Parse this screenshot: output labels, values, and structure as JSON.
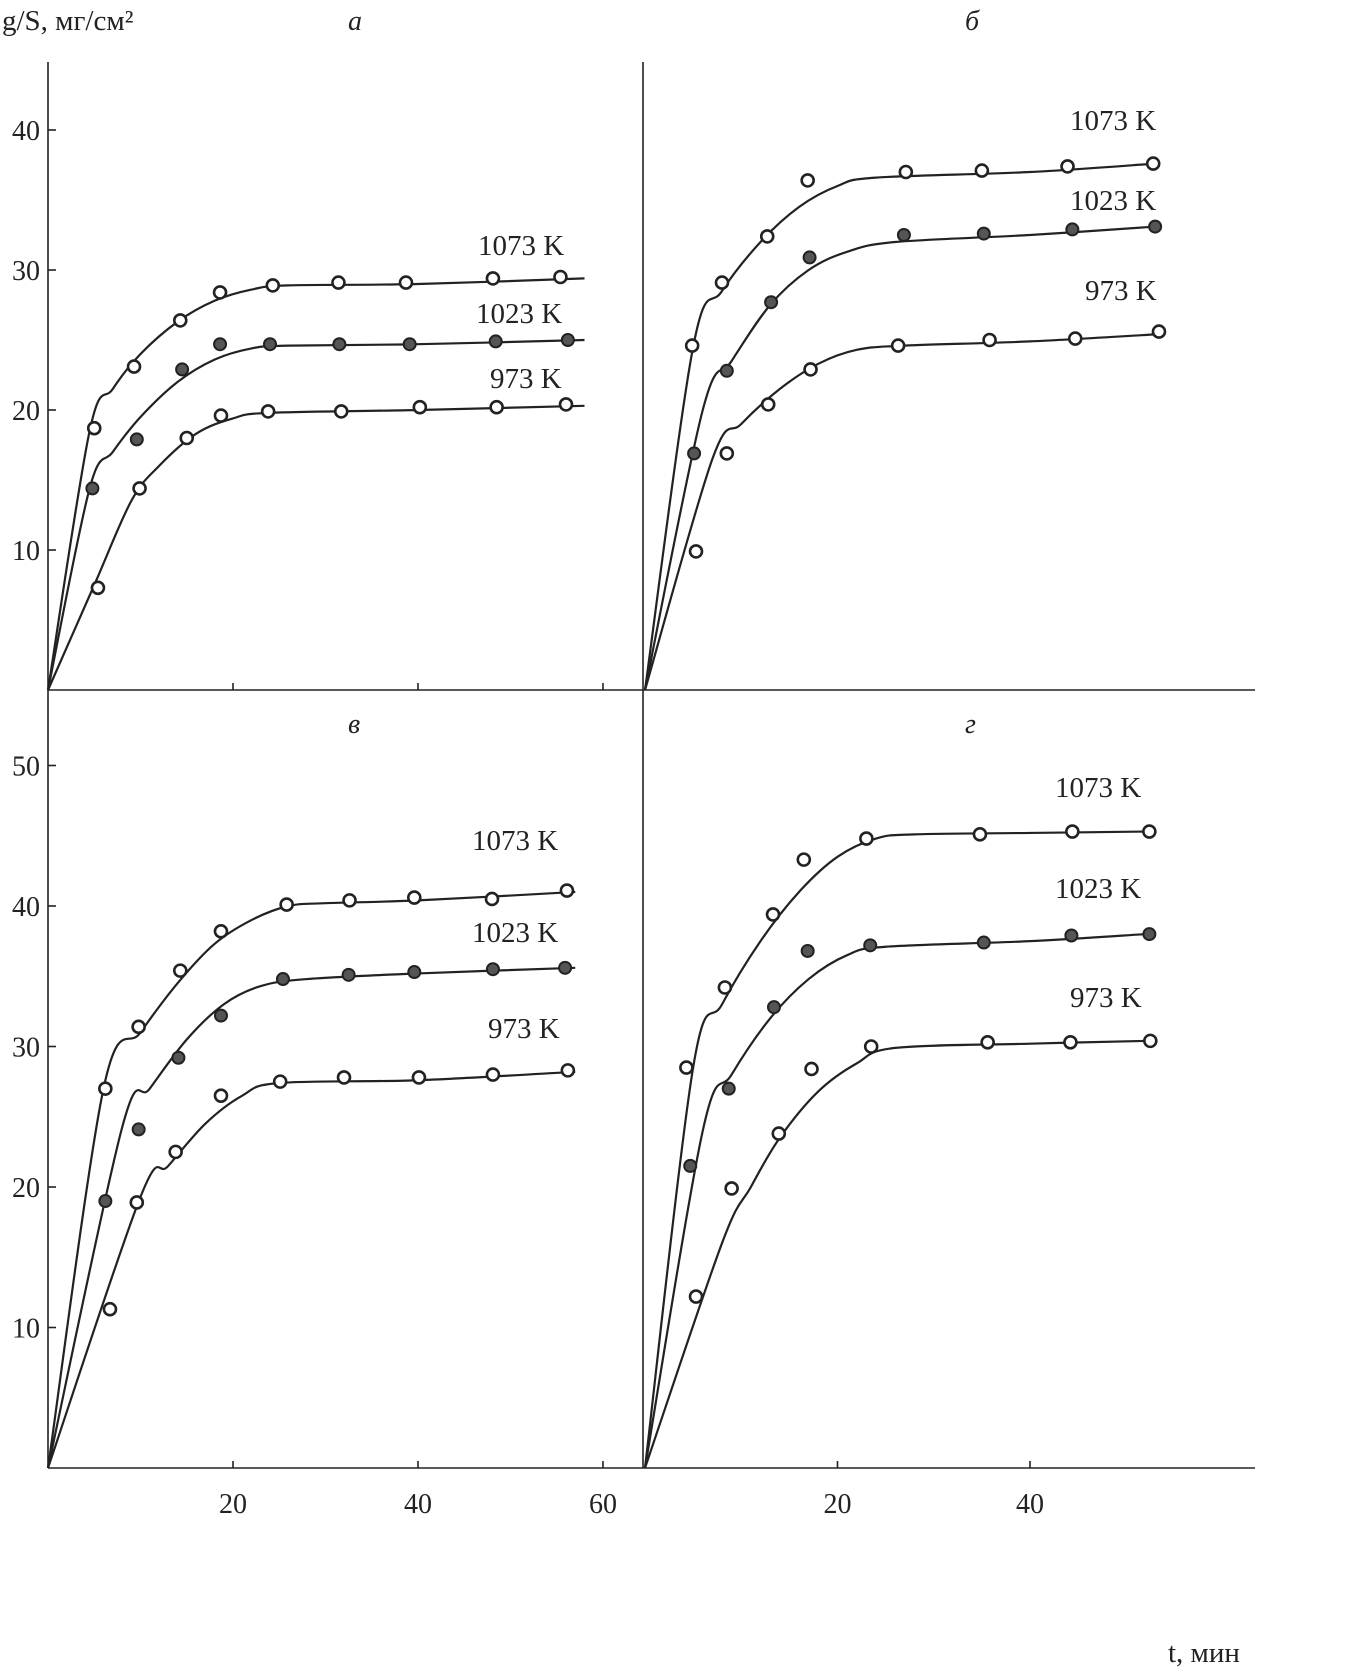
{
  "chart_data": {
    "type": "line",
    "ylabel": "g/S, мг/см²",
    "xlabel": "t, мин",
    "marker_colors": {
      "open": "#ffffff",
      "filled": "#555555",
      "stroke": "#222222"
    },
    "panels": [
      {
        "id": "a",
        "title": "а",
        "xlim": [
          0,
          64
        ],
        "ylim": [
          0,
          44.5
        ],
        "xticks": [
          20,
          40,
          60
        ],
        "yticks": [
          10,
          20,
          30,
          40
        ],
        "series": [
          {
            "name": "1073 K",
            "marker": "open",
            "points": [
              [
                5,
                18.7
              ],
              [
                9.3,
                23.1
              ],
              [
                14.3,
                26.4
              ],
              [
                18.6,
                28.4
              ],
              [
                24.3,
                28.9
              ],
              [
                31.4,
                29.1
              ],
              [
                38.7,
                29.1
              ],
              [
                48.1,
                29.4
              ],
              [
                55.4,
                29.5
              ]
            ],
            "curve": [
              [
                0,
                0
              ],
              [
                4.5,
                18.5
              ],
              [
                7,
                21.5
              ],
              [
                10,
                24
              ],
              [
                14,
                26.3
              ],
              [
                18,
                27.8
              ],
              [
                22,
                28.6
              ],
              [
                26,
                28.9
              ],
              [
                40,
                29
              ],
              [
                58,
                29.4
              ]
            ]
          },
          {
            "name": "1023 K",
            "marker": "filled",
            "points": [
              [
                4.8,
                14.4
              ],
              [
                9.6,
                17.9
              ],
              [
                14.5,
                22.9
              ],
              [
                18.6,
                24.7
              ],
              [
                24,
                24.7
              ],
              [
                31.5,
                24.7
              ],
              [
                39.1,
                24.7
              ],
              [
                48.4,
                24.9
              ],
              [
                56.2,
                25
              ]
            ],
            "curve": [
              [
                0,
                0
              ],
              [
                4.5,
                14.4
              ],
              [
                7,
                17
              ],
              [
                10,
                19.5
              ],
              [
                14,
                22
              ],
              [
                18,
                23.6
              ],
              [
                22,
                24.4
              ],
              [
                26,
                24.6
              ],
              [
                40,
                24.7
              ],
              [
                58,
                25
              ]
            ]
          },
          {
            "name": "973 K",
            "marker": "open",
            "points": [
              [
                5.4,
                7.3
              ],
              [
                9.9,
                14.4
              ],
              [
                15,
                18
              ],
              [
                18.7,
                19.6
              ],
              [
                23.8,
                19.9
              ],
              [
                31.7,
                19.9
              ],
              [
                40.2,
                20.2
              ],
              [
                48.5,
                20.2
              ],
              [
                56,
                20.4
              ]
            ],
            "curve": [
              [
                0,
                0
              ],
              [
                5,
                7.5
              ],
              [
                9,
                13.5
              ],
              [
                12,
                16
              ],
              [
                16,
                18.3
              ],
              [
                20,
                19.4
              ],
              [
                24,
                19.8
              ],
              [
                40,
                20
              ],
              [
                58,
                20.3
              ]
            ]
          }
        ]
      },
      {
        "id": "b",
        "title": "б",
        "xlim": [
          0,
          63
        ],
        "ylim": [
          0,
          44.5
        ],
        "xticks": [],
        "yticks": [],
        "series": [
          {
            "name": "1073 K",
            "marker": "open",
            "points": [
              [
                4.9,
                24.6
              ],
              [
                8,
                29.1
              ],
              [
                12.7,
                32.4
              ],
              [
                16.9,
                36.4
              ],
              [
                27.1,
                37
              ],
              [
                35,
                37.1
              ],
              [
                43.9,
                37.4
              ],
              [
                52.8,
                37.6
              ]
            ],
            "curve": [
              [
                0,
                0
              ],
              [
                5,
                24.5
              ],
              [
                8,
                28.5
              ],
              [
                12,
                32
              ],
              [
                16,
                34.5
              ],
              [
                20,
                36
              ],
              [
                24,
                36.6
              ],
              [
                40,
                37
              ],
              [
                53,
                37.6
              ]
            ]
          },
          {
            "name": "1023 K",
            "marker": "filled",
            "points": [
              [
                5.1,
                16.9
              ],
              [
                8.5,
                22.8
              ],
              [
                13.1,
                27.7
              ],
              [
                17.1,
                30.9
              ],
              [
                26.9,
                32.5
              ],
              [
                35.2,
                32.6
              ],
              [
                44.4,
                32.9
              ],
              [
                53,
                33.1
              ]
            ],
            "curve": [
              [
                0,
                0
              ],
              [
                6,
                20
              ],
              [
                9,
                23.5
              ],
              [
                13,
                27.5
              ],
              [
                17,
                30
              ],
              [
                21,
                31.3
              ],
              [
                26,
                32
              ],
              [
                40,
                32.5
              ],
              [
                53,
                33.1
              ]
            ]
          },
          {
            "name": "973 K",
            "marker": "open",
            "points": [
              [
                5.3,
                9.9
              ],
              [
                8.5,
                16.9
              ],
              [
                12.8,
                20.4
              ],
              [
                17.2,
                22.9
              ],
              [
                26.3,
                24.6
              ],
              [
                35.8,
                25
              ],
              [
                44.7,
                25.1
              ],
              [
                53.4,
                25.6
              ]
            ],
            "curve": [
              [
                0,
                0
              ],
              [
                7,
                16.5
              ],
              [
                10,
                19
              ],
              [
                14,
                21.5
              ],
              [
                18,
                23.3
              ],
              [
                22,
                24.3
              ],
              [
                27,
                24.6
              ],
              [
                40,
                24.9
              ],
              [
                53,
                25.4
              ]
            ]
          }
        ]
      },
      {
        "id": "c",
        "title": "в",
        "xlim": [
          0,
          64
        ],
        "ylim": [
          0,
          55
        ],
        "xticks": [
          20,
          40,
          60
        ],
        "yticks": [
          10,
          20,
          30,
          40,
          50
        ],
        "series": [
          {
            "name": "1073 K",
            "marker": "open",
            "points": [
              [
                6.2,
                27
              ],
              [
                9.8,
                31.4
              ],
              [
                14.3,
                35.4
              ],
              [
                18.7,
                38.2
              ],
              [
                25.8,
                40.1
              ],
              [
                32.6,
                40.4
              ],
              [
                39.6,
                40.6
              ],
              [
                48,
                40.5
              ],
              [
                56.1,
                41.1
              ]
            ],
            "curve": [
              [
                0,
                0
              ],
              [
                6,
                27
              ],
              [
                10,
                31
              ],
              [
                14,
                34.5
              ],
              [
                18,
                37.3
              ],
              [
                22,
                39
              ],
              [
                26,
                40
              ],
              [
                30,
                40.2
              ],
              [
                40,
                40.4
              ],
              [
                57,
                41
              ]
            ]
          },
          {
            "name": "1023 K",
            "marker": "filled",
            "points": [
              [
                6.2,
                19
              ],
              [
                9.8,
                24.1
              ],
              [
                14.1,
                29.2
              ],
              [
                18.7,
                32.2
              ],
              [
                25.4,
                34.8
              ],
              [
                32.5,
                35.1
              ],
              [
                39.6,
                35.3
              ],
              [
                48.1,
                35.5
              ],
              [
                55.9,
                35.6
              ]
            ],
            "curve": [
              [
                0,
                0
              ],
              [
                8,
                24.2
              ],
              [
                11,
                27
              ],
              [
                15,
                30.5
              ],
              [
                19,
                33
              ],
              [
                23,
                34.3
              ],
              [
                28,
                34.8
              ],
              [
                40,
                35.2
              ],
              [
                57,
                35.6
              ]
            ]
          },
          {
            "name": "973 K",
            "marker": "open",
            "points": [
              [
                6.7,
                11.3
              ],
              [
                9.6,
                18.9
              ],
              [
                13.8,
                22.5
              ],
              [
                18.7,
                26.5
              ],
              [
                25.1,
                27.5
              ],
              [
                32,
                27.8
              ],
              [
                40.1,
                27.8
              ],
              [
                48.1,
                28
              ],
              [
                56.2,
                28.3
              ]
            ],
            "curve": [
              [
                0,
                0
              ],
              [
                10,
                19.3
              ],
              [
                13,
                21.5
              ],
              [
                17,
                24.5
              ],
              [
                21,
                26.5
              ],
              [
                25,
                27.4
              ],
              [
                40,
                27.6
              ],
              [
                57,
                28.2
              ]
            ]
          }
        ]
      },
      {
        "id": "d",
        "title": "г",
        "xlim": [
          0,
          63
        ],
        "ylim": [
          0,
          55
        ],
        "xticks": [
          20,
          40
        ],
        "yticks": [],
        "series": [
          {
            "name": "1073 K",
            "marker": "open",
            "points": [
              [
                4.3,
                28.5
              ],
              [
                8.3,
                34.2
              ],
              [
                13.3,
                39.4
              ],
              [
                16.5,
                43.3
              ],
              [
                23,
                44.8
              ],
              [
                34.8,
                45.1
              ],
              [
                44.4,
                45.3
              ],
              [
                52.4,
                45.3
              ]
            ],
            "curve": [
              [
                0,
                0
              ],
              [
                5,
                28.5
              ],
              [
                8,
                33
              ],
              [
                12,
                37.5
              ],
              [
                16,
                41
              ],
              [
                20,
                43.5
              ],
              [
                24,
                44.8
              ],
              [
                28,
                45.1
              ],
              [
                40,
                45.2
              ],
              [
                52,
                45.3
              ]
            ]
          },
          {
            "name": "1023 K",
            "marker": "filled",
            "points": [
              [
                4.7,
                21.5
              ],
              [
                8.7,
                27
              ],
              [
                13.4,
                32.8
              ],
              [
                16.9,
                36.8
              ],
              [
                23.4,
                37.2
              ],
              [
                35.2,
                37.4
              ],
              [
                44.3,
                37.9
              ],
              [
                52.4,
                38
              ]
            ],
            "curve": [
              [
                0,
                0
              ],
              [
                6,
                24
              ],
              [
                9,
                28
              ],
              [
                13,
                32
              ],
              [
                17,
                34.8
              ],
              [
                21,
                36.5
              ],
              [
                25,
                37.1
              ],
              [
                40,
                37.5
              ],
              [
                52,
                38
              ]
            ]
          },
          {
            "name": "973 K",
            "marker": "open",
            "points": [
              [
                5.3,
                12.2
              ],
              [
                9,
                19.9
              ],
              [
                13.9,
                23.8
              ],
              [
                17.3,
                28.4
              ],
              [
                23.5,
                30
              ],
              [
                35.6,
                30.3
              ],
              [
                44.2,
                30.3
              ],
              [
                52.5,
                30.4
              ]
            ],
            "curve": [
              [
                0,
                0
              ],
              [
                8,
                16
              ],
              [
                11,
                20
              ],
              [
                14,
                23.5
              ],
              [
                18,
                26.8
              ],
              [
                22,
                28.8
              ],
              [
                26,
                29.9
              ],
              [
                40,
                30.2
              ],
              [
                52,
                30.4
              ]
            ]
          }
        ]
      }
    ]
  }
}
